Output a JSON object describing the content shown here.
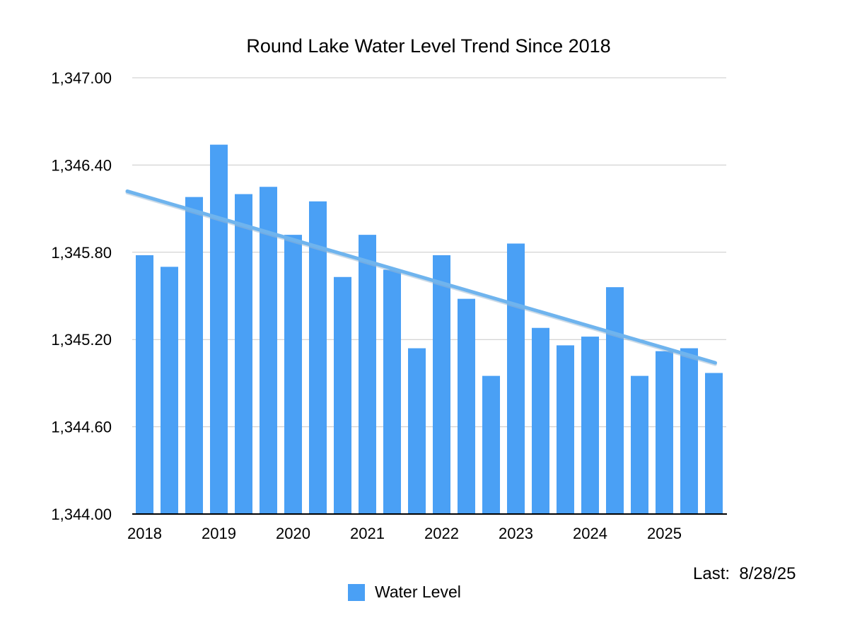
{
  "chart_data": {
    "type": "bar",
    "title": "Round Lake Water Level Trend Since 2018",
    "xlabel": "",
    "ylabel": "",
    "ylim": [
      1344.0,
      1347.0
    ],
    "yticks": [
      "1,344.00",
      "1,344.60",
      "1,345.20",
      "1,345.80",
      "1,346.40",
      "1,347.00"
    ],
    "ytick_values": [
      1344.0,
      1344.6,
      1345.2,
      1345.8,
      1346.4,
      1347.0
    ],
    "xtick_labels": [
      "2018",
      "2019",
      "2020",
      "2021",
      "2022",
      "2023",
      "2024",
      "2025"
    ],
    "xtick_bar_index": [
      0,
      3,
      6,
      9,
      12,
      15,
      18,
      21
    ],
    "grid": true,
    "legend_position": "bottom-center",
    "series": [
      {
        "name": "Water Level",
        "color": "#4aa0f5",
        "values": [
          1345.78,
          1345.7,
          1346.18,
          1346.54,
          1346.2,
          1346.25,
          1345.92,
          1346.15,
          1345.63,
          1345.92,
          1345.68,
          1345.14,
          1345.78,
          1345.48,
          1344.95,
          1345.86,
          1345.28,
          1345.16,
          1345.22,
          1345.56,
          1344.95,
          1345.12,
          1345.14,
          1344.97
        ]
      }
    ],
    "trendline": {
      "color": "#6fb4ee",
      "start": 1346.22,
      "end": 1345.04
    }
  },
  "note": {
    "label": "Last:",
    "date": "8/28/25"
  },
  "legend": {
    "label": "Water Level"
  }
}
